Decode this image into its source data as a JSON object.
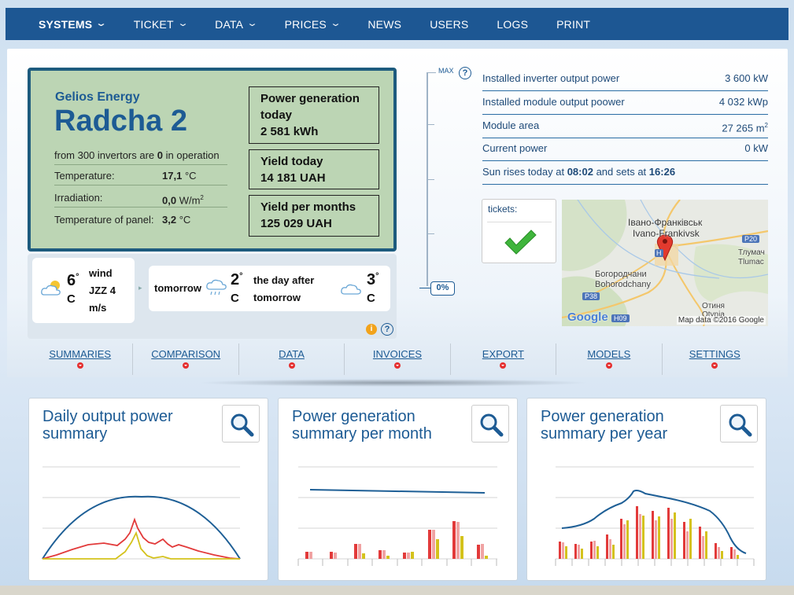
{
  "nav": {
    "items": [
      {
        "label": "SYSTEMS",
        "dropdown": true,
        "active": true
      },
      {
        "label": "TICKET",
        "dropdown": true
      },
      {
        "label": "DATA",
        "dropdown": true
      },
      {
        "label": "PRICES",
        "dropdown": true
      },
      {
        "label": "NEWS"
      },
      {
        "label": "USERS"
      },
      {
        "label": "LOGS"
      },
      {
        "label": "PRINT"
      }
    ]
  },
  "station": {
    "company": "Gelios Energy",
    "name": "Radcha 2",
    "invertors_prefix": "from 300 invertors are",
    "invertors_value": "0",
    "invertors_suffix": "in operation",
    "temperature_label": "Temperature:",
    "temperature_value": "17,1",
    "temperature_unit": "°C",
    "irradiation_label": "Irradiation:",
    "irradiation_value": "0,0",
    "irradiation_unit": "W/m",
    "irradiation_sup": "2",
    "panel_temp_label": "Temperature of panel:",
    "panel_temp_value": "3,2",
    "panel_temp_unit": "°C"
  },
  "boxes": {
    "gen_label": "Power generation today",
    "gen_value": "2 581 kWh",
    "yield_label": "Yield today",
    "yield_value": "14 181 UAH",
    "yield_month_label": "Yield per months",
    "yield_month_value": "125 029 UAH"
  },
  "weather": {
    "today_temp": "6",
    "deg": "°",
    "unit": "C",
    "wind_line1": "wind",
    "wind_line2": "JZZ 4",
    "wind_line3": "m/s",
    "tomorrow_label": "tomorrow",
    "tomorrow_temp": "2",
    "after_label_1": "the day after",
    "after_label_2": "tomorrow",
    "after_temp": "3"
  },
  "gauge": {
    "max_label": "MAX",
    "percent": "0%",
    "help_icon": "question-icon"
  },
  "stats": [
    {
      "label": "Installed inverter output power",
      "value": "3 600 kW"
    },
    {
      "label": "Installed module output poower",
      "value": "4 032 kWp"
    },
    {
      "label": "Module area",
      "value": "27 265 m",
      "sup": "2"
    },
    {
      "label": "Current power",
      "value": "0 kW"
    }
  ],
  "sun": {
    "prefix": "Sun rises today at",
    "rise": "08:02",
    "middle": "and sets at",
    "set": "16:26"
  },
  "tickets": {
    "label": "tickets:",
    "icon": "check-icon"
  },
  "map": {
    "city_ua": "Івано-Франківськ",
    "city_en": "Ivano-Frankivsk",
    "town_ua": "Богородчани",
    "town_en": "Bohorodchany",
    "tlum_ua": "Тлумач",
    "tlum_en": "Tlumac",
    "otynia": "Отиня",
    "otynia_en": "Otynia",
    "road_p20": "P20",
    "road_p38": "P38",
    "road_h09": "H09",
    "road_h": "H",
    "google": "Google",
    "credit": "Map data ©2016 Google"
  },
  "subnav": [
    "SUMMARIES",
    "COMPARISON",
    "DATA",
    "INVOICES",
    "EXPORT",
    "MODELS",
    "SETTINGS"
  ],
  "cards": [
    {
      "title": "Daily output power summary"
    },
    {
      "title": "Power generation summary per month"
    },
    {
      "title": "Power generation summary per year"
    }
  ],
  "colors": {
    "nav_bg": "#1d5793",
    "station_bg": "#bcd5b4",
    "accent_blue": "#1d5b94",
    "series_blue": "#1e5f96",
    "series_red": "#e23a3a",
    "series_pink": "#f0a3a3",
    "series_yellow": "#d4c21c"
  }
}
